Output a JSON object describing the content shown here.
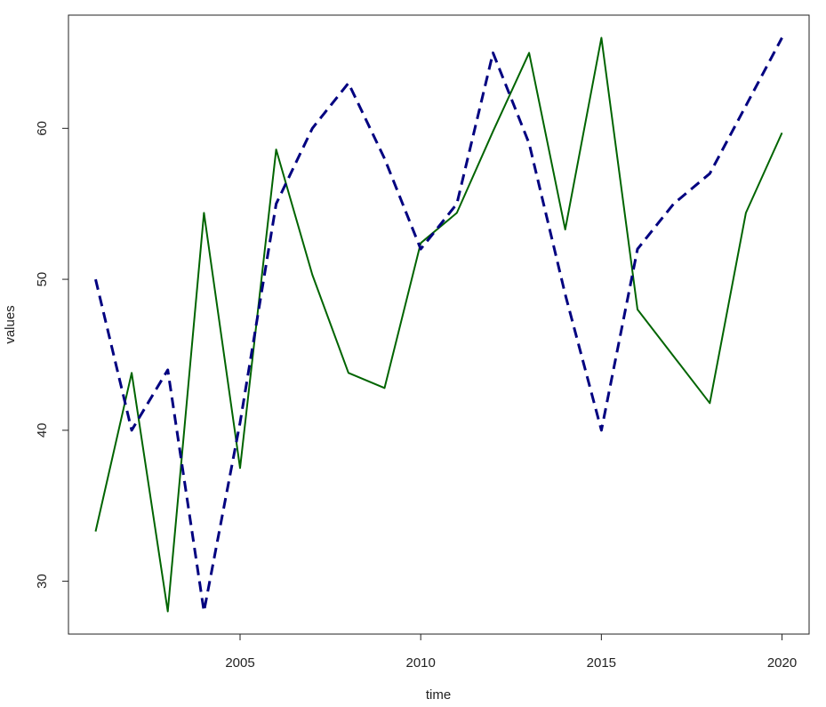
{
  "chart_data": {
    "type": "line",
    "xlabel": "time",
    "ylabel": "values",
    "xlim": [
      2000.25,
      2020.75
    ],
    "ylim": [
      26.5,
      67.5
    ],
    "x_ticks": [
      2005,
      2010,
      2015,
      2020
    ],
    "y_ticks": [
      30,
      40,
      50,
      60
    ],
    "x": [
      2001,
      2002,
      2003,
      2004,
      2005,
      2006,
      2007,
      2008,
      2009,
      2010,
      2011,
      2012,
      2013,
      2014,
      2015,
      2016,
      2017,
      2018,
      2019,
      2020
    ],
    "series": [
      {
        "style": "solid",
        "color": "#006400",
        "values": [
          33.3,
          43.8,
          28.0,
          54.4,
          37.5,
          58.6,
          50.3,
          43.8,
          42.8,
          52.4,
          54.4,
          59.8,
          65.0,
          53.3,
          66.0,
          48.0,
          44.9,
          41.8,
          54.4,
          59.7
        ]
      },
      {
        "style": "dashed",
        "color": "#000080",
        "values": [
          50.0,
          40.0,
          44.0,
          28.0,
          40.5,
          55.0,
          60.0,
          63.0,
          58.0,
          52.0,
          55.0,
          65.0,
          59.0,
          49.0,
          40.0,
          52.0,
          55.0,
          57.0,
          61.5,
          66.0
        ]
      }
    ],
    "grid": false,
    "legend": "none"
  }
}
